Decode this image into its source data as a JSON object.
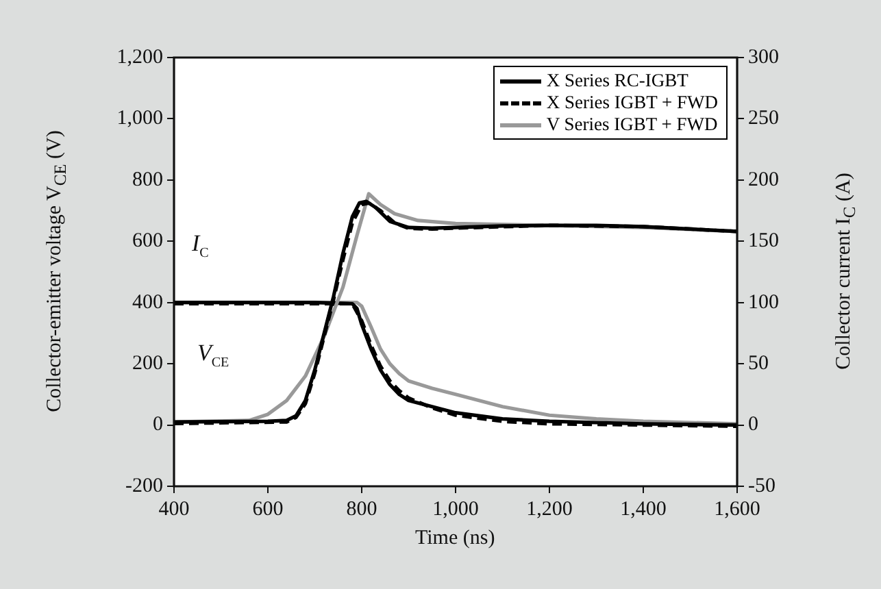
{
  "chart_data": {
    "type": "line",
    "xlabel": "Time (ns)",
    "ylabel": "Collector-emitter voltage V$_{CE}$ (V)",
    "y2label": "Collector current I$_{C}$ (A)",
    "xlim": [
      400,
      1600
    ],
    "xticks": [
      400,
      600,
      800,
      {
        "value": 1000,
        "label": "1,000"
      },
      {
        "value": 1200,
        "label": "1,200"
      },
      {
        "value": 1400,
        "label": "1,400"
      },
      {
        "value": 1600,
        "label": "1,600"
      }
    ],
    "ylim": [
      -200,
      1200
    ],
    "yticks": [
      -200,
      0,
      200,
      400,
      600,
      800,
      {
        "value": 1000,
        "label": "1,000"
      },
      {
        "value": 1200,
        "label": "1,200"
      }
    ],
    "y2lim": [
      -50,
      300
    ],
    "y2ticks": [
      -50,
      0,
      50,
      100,
      150,
      200,
      250,
      300
    ],
    "grid": false,
    "legend": "top right",
    "marker": "none",
    "annotations": [
      "I$_{C}$",
      "V$_{CE}$"
    ],
    "series": [
      {
        "name": "X Series RC-IGBT",
        "color": "#000000",
        "line_style": "solid",
        "x": [
          400,
          600,
          640,
          660,
          680,
          700,
          720,
          740,
          760,
          780,
          795,
          810,
          830,
          860,
          900,
          950,
          1000,
          1100,
          1200,
          1300,
          1400,
          1500,
          1600
        ],
        "values": [
          10,
          12,
          15,
          30,
          80,
          180,
          300,
          420,
          560,
          680,
          725,
          730,
          710,
          665,
          645,
          643,
          645,
          650,
          652,
          652,
          648,
          640,
          632
        ]
      },
      {
        "name": "X Series IGBT + FWD",
        "color": "#000000",
        "line_style": "dashed",
        "x": [
          400,
          640,
          660,
          680,
          700,
          720,
          740,
          760,
          780,
          800,
          815,
          840,
          870,
          900,
          950,
          1000,
          1200,
          1400,
          1600
        ],
        "values": [
          5,
          10,
          25,
          70,
          170,
          290,
          410,
          540,
          660,
          720,
          725,
          700,
          660,
          642,
          640,
          643,
          652,
          648,
          632
        ]
      },
      {
        "name": "V Series IGBT + FWD",
        "color": "#999999",
        "line_style": "solid",
        "x": [
          400,
          560,
          600,
          640,
          680,
          720,
          760,
          790,
          815,
          840,
          870,
          920,
          1000,
          1200,
          1400,
          1600
        ],
        "values": [
          10,
          15,
          35,
          80,
          160,
          290,
          450,
          620,
          755,
          720,
          690,
          668,
          658,
          652,
          645,
          632
        ]
      },
      {
        "color": "#000000",
        "line_style": "solid",
        "axis": "y2",
        "x": [
          400,
          700,
          780,
          790,
          800,
          820,
          840,
          860,
          880,
          900,
          950,
          1000,
          1100,
          1200,
          1300,
          1400,
          1600
        ],
        "values": [
          100,
          100,
          99,
          95,
          82,
          62,
          45,
          33,
          25,
          20,
          15,
          10,
          5,
          3,
          2,
          1,
          0
        ]
      },
      {
        "color": "#000000",
        "line_style": "dashed",
        "axis": "y2",
        "x": [
          400,
          780,
          800,
          820,
          840,
          860,
          880,
          900,
          950,
          1000,
          1100,
          1200,
          1400,
          1600
        ],
        "values": [
          99,
          99,
          85,
          65,
          48,
          36,
          28,
          22,
          14,
          8,
          3,
          1,
          0,
          -1
        ]
      },
      {
        "color": "#999999",
        "line_style": "solid",
        "axis": "y2",
        "x": [
          400,
          790,
          800,
          820,
          840,
          860,
          880,
          900,
          950,
          1000,
          1100,
          1200,
          1300,
          1400,
          1600
        ],
        "values": [
          100,
          100,
          97,
          80,
          62,
          50,
          42,
          36,
          30,
          25,
          15,
          8,
          5,
          3,
          1
        ]
      }
    ]
  }
}
